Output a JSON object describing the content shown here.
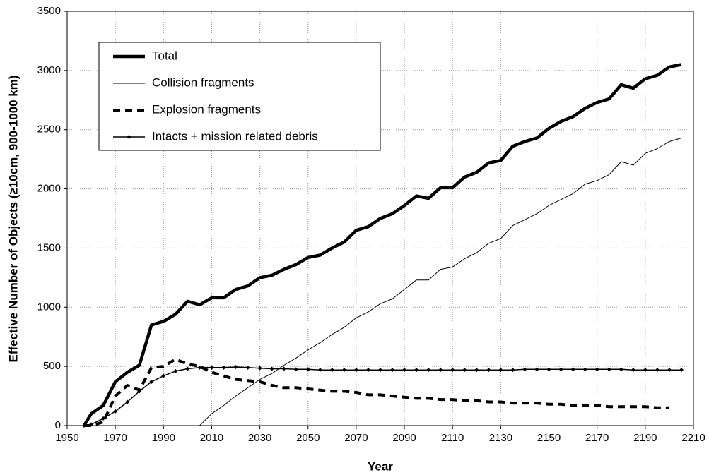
{
  "chart_data": {
    "type": "line",
    "x_label": "Year",
    "y_label": "Effective Number of Objects (≥10cm, 900-1000 km)",
    "x": [
      1957,
      1960,
      1965,
      1970,
      1975,
      1980,
      1985,
      1990,
      1995,
      2000,
      2005,
      2010,
      2015,
      2020,
      2025,
      2030,
      2035,
      2040,
      2045,
      2050,
      2055,
      2060,
      2065,
      2070,
      2075,
      2080,
      2085,
      2090,
      2095,
      2100,
      2105,
      2110,
      2115,
      2120,
      2125,
      2130,
      2135,
      2140,
      2145,
      2150,
      2155,
      2160,
      2165,
      2170,
      2175,
      2180,
      2185,
      2190,
      2195,
      2200,
      2205
    ],
    "series": [
      {
        "name": "Total",
        "color": "#000000",
        "values": [
          0,
          100,
          170,
          370,
          450,
          510,
          850,
          880,
          940,
          1050,
          1020,
          1080,
          1080,
          1150,
          1180,
          1250,
          1270,
          1320,
          1360,
          1420,
          1440,
          1500,
          1550,
          1650,
          1680,
          1750,
          1790,
          1860,
          1940,
          1920,
          2010,
          2010,
          2100,
          2140,
          2220,
          2240,
          2360,
          2400,
          2430,
          2510,
          2570,
          2610,
          2680,
          2730,
          2760,
          2880,
          2850,
          2930,
          2960,
          3030,
          3050
        ]
      },
      {
        "name": "Collision fragments",
        "color": "#000000",
        "values": [
          0,
          0,
          0,
          0,
          0,
          0,
          0,
          0,
          0,
          0,
          0,
          100,
          170,
          250,
          320,
          390,
          440,
          510,
          570,
          640,
          700,
          770,
          830,
          910,
          960,
          1030,
          1070,
          1150,
          1230,
          1230,
          1320,
          1340,
          1410,
          1460,
          1540,
          1580,
          1690,
          1740,
          1790,
          1860,
          1910,
          1960,
          2040,
          2070,
          2120,
          2230,
          2200,
          2300,
          2340,
          2400,
          2430
        ]
      },
      {
        "name": "Explosion fragments",
        "color": "#000000",
        "values": [
          0,
          0,
          30,
          250,
          340,
          300,
          490,
          500,
          560,
          520,
          500,
          450,
          420,
          390,
          380,
          370,
          340,
          320,
          320,
          310,
          300,
          290,
          290,
          280,
          260,
          260,
          250,
          240,
          230,
          230,
          220,
          220,
          210,
          210,
          200,
          200,
          190,
          190,
          190,
          180,
          180,
          170,
          170,
          170,
          160,
          160,
          160,
          160,
          150,
          150,
          null
        ]
      },
      {
        "name": "Intacts + mission related debris",
        "color": "#000000",
        "values": [
          0,
          10,
          60,
          120,
          200,
          290,
          370,
          420,
          460,
          480,
          490,
          490,
          490,
          495,
          490,
          485,
          480,
          480,
          475,
          475,
          470,
          470,
          470,
          470,
          470,
          470,
          470,
          470,
          470,
          470,
          470,
          470,
          470,
          470,
          470,
          470,
          470,
          475,
          475,
          475,
          475,
          475,
          475,
          475,
          475,
          475,
          470,
          470,
          470,
          470,
          470
        ]
      }
    ],
    "xlim": [
      1950,
      2210
    ],
    "xticks": [
      1950,
      1970,
      1990,
      2010,
      2030,
      2050,
      2070,
      2090,
      2110,
      2130,
      2150,
      2170,
      2190,
      2210
    ],
    "ylim": [
      0,
      3500
    ],
    "yticks": [
      0,
      500,
      1000,
      1500,
      2000,
      2500,
      3000,
      3500
    ],
    "grid": true
  }
}
